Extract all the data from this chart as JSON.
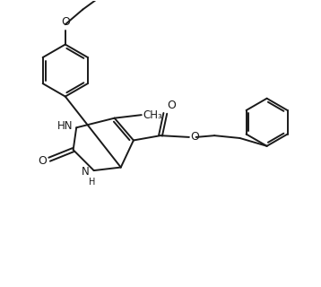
{
  "bg_color": "#ffffff",
  "line_color": "#1a1a1a",
  "line_width": 1.4,
  "figsize": [
    3.58,
    3.2
  ],
  "dpi": 100,
  "xlim": [
    0,
    10
  ],
  "ylim": [
    0,
    9
  ]
}
